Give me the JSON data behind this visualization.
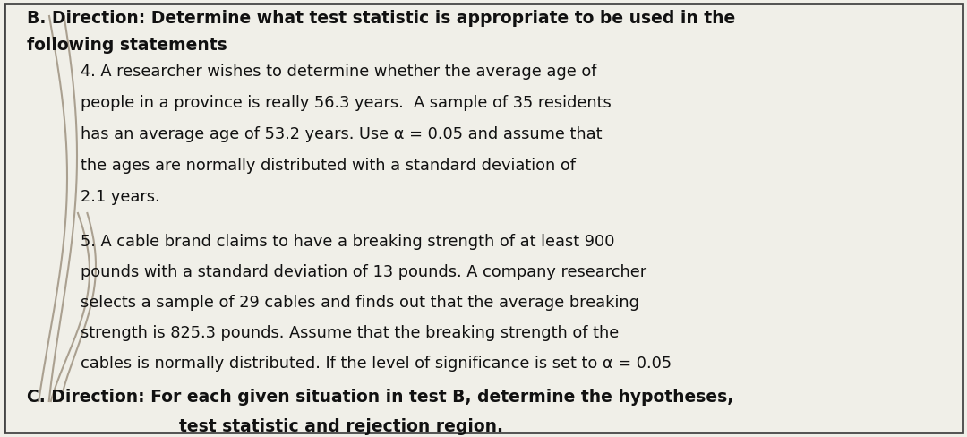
{
  "background_color": "#f0efe8",
  "border_color": "#444444",
  "title_line1": "B. Direction: Determine what test statistic is appropriate to be used in the",
  "title_line2": "following statements",
  "item4_lines": [
    "4. A researcher wishes to determine whether the average age of",
    "people in a province is really 56.3 years.  A sample of 35 residents",
    "has an average age of 53.2 years. Use α = 0.05 and assume that",
    "the ages are normally distributed with a standard deviation of",
    "2.1 years."
  ],
  "item5_lines": [
    "5. A cable brand claims to have a breaking strength of at least 900",
    "pounds with a standard deviation of 13 pounds. A company researcher",
    "selects a sample of 29 cables and finds out that the average breaking",
    "strength is 825.3 pounds. Assume that the breaking strength of the",
    "cables is normally distributed. If the level of significance is set to α = 0.05"
  ],
  "footer_line1": "C. Direction: For each given situation in test B, determine the hypotheses,",
  "footer_line2": "test statistic and rejection region.",
  "title_fontsize": 13.5,
  "body_fontsize": 12.8,
  "footer_fontsize": 13.5,
  "text_color": "#111111",
  "diagonal_line_color": "#aaa090"
}
